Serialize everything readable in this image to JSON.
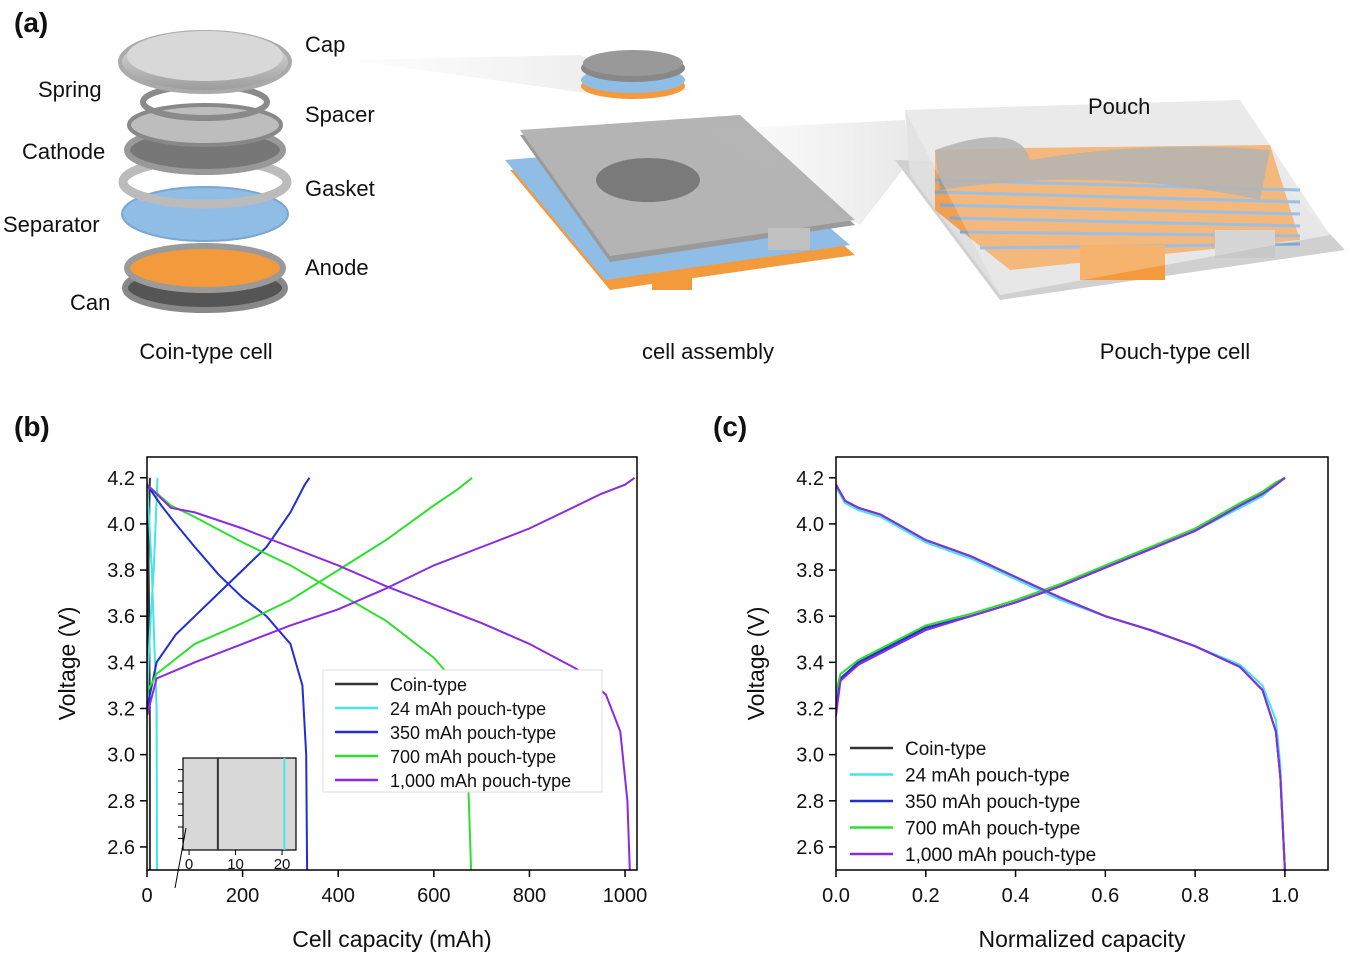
{
  "panel_labels": [
    "(a)",
    "(b)",
    "(c)"
  ],
  "diagram": {
    "coin_labels": [
      "Cap",
      "Spring",
      "Spacer",
      "Cathode",
      "Gasket",
      "Separator",
      "Anode",
      "Can"
    ],
    "pouch_label": "Pouch",
    "captions": [
      "Coin-type cell",
      "cell assembly",
      "Pouch-type cell"
    ]
  },
  "chart_data": [
    {
      "type": "line",
      "xlabel": "Cell capacity (mAh)",
      "ylabel": "Voltage (V)",
      "xlim": [
        0,
        1025
      ],
      "ylim": [
        2.5,
        4.29
      ],
      "xticks": [
        0,
        200,
        400,
        600,
        800,
        1000
      ],
      "yticks": [
        2.6,
        2.8,
        {
          "value": 3.0,
          "label": "3.0"
        },
        3.2,
        3.4,
        3.6,
        3.8,
        {
          "value": 4.0,
          "label": "4.0"
        },
        4.2
      ],
      "legend": "center right",
      "legend_frame": true,
      "series": [
        {
          "name": "Coin-type",
          "color": "#333333",
          "x": [
            0,
            1,
            3,
            5,
            6,
            null,
            0,
            2,
            4,
            5,
            6,
            6
          ],
          "values": [
            3.2,
            3.5,
            3.8,
            4.1,
            4.2,
            null,
            4.18,
            4.0,
            3.7,
            3.4,
            3.1,
            2.5
          ]
        },
        {
          "name": "24 mAh pouch-type",
          "color": "#44e4e8",
          "x": [
            0,
            3,
            8,
            14,
            19,
            22,
            null,
            0,
            5,
            10,
            15,
            20,
            21
          ],
          "values": [
            3.2,
            3.4,
            3.6,
            3.8,
            4.05,
            4.2,
            null,
            4.18,
            4.0,
            3.8,
            3.5,
            3.2,
            2.5
          ]
        },
        {
          "name": "350 mAh pouch-type",
          "color": "#1f2fd0",
          "x": [
            0,
            20,
            60,
            100,
            150,
            200,
            250,
            300,
            330,
            340,
            null,
            0,
            30,
            60,
            100,
            150,
            200,
            250,
            300,
            325,
            333,
            335
          ],
          "values": [
            3.2,
            3.4,
            3.52,
            3.6,
            3.7,
            3.8,
            3.9,
            4.05,
            4.17,
            4.2,
            null,
            4.17,
            4.08,
            4.0,
            3.9,
            3.78,
            3.68,
            3.6,
            3.48,
            3.3,
            3.0,
            2.5
          ]
        },
        {
          "name": "700 mAh pouch-type",
          "color": "#2ee02e",
          "x": [
            0,
            20,
            100,
            200,
            300,
            400,
            500,
            600,
            650,
            680,
            null,
            0,
            50,
            100,
            200,
            300,
            400,
            500,
            600,
            650,
            670,
            678
          ],
          "values": [
            3.27,
            3.35,
            3.48,
            3.57,
            3.67,
            3.8,
            3.93,
            4.08,
            4.15,
            4.2,
            null,
            4.17,
            4.08,
            4.03,
            3.92,
            3.82,
            3.7,
            3.58,
            3.42,
            3.3,
            3.0,
            2.5
          ]
        },
        {
          "name": "1,000 mAh pouch-type",
          "color": "#8a2be2",
          "x": [
            0,
            20,
            100,
            200,
            300,
            400,
            500,
            600,
            700,
            800,
            900,
            950,
            1000,
            1020,
            null,
            0,
            50,
            100,
            200,
            300,
            400,
            500,
            600,
            700,
            800,
            900,
            960,
            990,
            1005,
            1010
          ],
          "values": [
            3.17,
            3.33,
            3.4,
            3.48,
            3.56,
            3.63,
            3.72,
            3.82,
            3.9,
            3.98,
            4.08,
            4.13,
            4.17,
            4.2,
            null,
            4.17,
            4.07,
            4.05,
            3.98,
            3.9,
            3.82,
            3.73,
            3.65,
            3.57,
            3.48,
            3.37,
            3.26,
            3.1,
            2.8,
            2.5
          ]
        }
      ],
      "inset": {
        "xlim": [
          -1.3,
          23
        ],
        "xticks": [
          0,
          10,
          20
        ],
        "values": [
          6.2,
          20.5
        ],
        "colors": [
          "#333333",
          "#44e4e8"
        ]
      }
    },
    {
      "type": "line",
      "xlabel": "Normalized capacity",
      "ylabel": "Voltage (V)",
      "xlim": [
        0,
        1.096
      ],
      "ylim": [
        2.5,
        4.29
      ],
      "xticks": [
        {
          "value": 0.0,
          "label": "0.0"
        },
        0.2,
        0.4,
        0.6,
        0.8,
        {
          "value": 1.0,
          "label": "1.0"
        }
      ],
      "yticks": [
        2.6,
        2.8,
        {
          "value": 3.0,
          "label": "3.0"
        },
        3.2,
        3.4,
        3.6,
        3.8,
        {
          "value": 4.0,
          "label": "4.0"
        },
        4.2
      ],
      "legend": "lower left",
      "legend_frame": false,
      "series": [
        {
          "name": "Coin-type",
          "color": "#333333",
          "x": [
            0,
            0.01,
            0.05,
            0.1,
            0.2,
            0.3,
            0.4,
            0.5,
            0.6,
            0.7,
            0.8,
            0.9,
            0.95,
            0.98,
            1.0,
            null,
            0,
            0.02,
            0.05,
            0.1,
            0.2,
            0.3,
            0.4,
            0.5,
            0.6,
            0.7,
            0.8,
            0.9,
            0.95,
            0.98,
            0.99,
            1.0
          ],
          "values": [
            3.2,
            3.33,
            3.4,
            3.45,
            3.55,
            3.6,
            3.66,
            3.73,
            3.81,
            3.89,
            3.97,
            4.08,
            4.13,
            4.17,
            4.2,
            null,
            4.17,
            4.1,
            4.07,
            4.04,
            3.93,
            3.86,
            3.77,
            3.68,
            3.6,
            3.54,
            3.47,
            3.38,
            3.28,
            3.1,
            2.9,
            2.5
          ]
        },
        {
          "name": "24 mAh pouch-type",
          "color": "#44e4e8",
          "x": [
            0,
            0.01,
            0.05,
            0.1,
            0.2,
            0.3,
            0.4,
            0.5,
            0.6,
            0.7,
            0.8,
            0.9,
            0.95,
            0.98,
            1.0,
            null,
            0,
            0.02,
            0.05,
            0.1,
            0.2,
            0.3,
            0.4,
            0.5,
            0.6,
            0.7,
            0.8,
            0.9,
            0.95,
            0.98,
            0.99,
            1.0
          ],
          "values": [
            3.22,
            3.33,
            3.39,
            3.44,
            3.54,
            3.6,
            3.66,
            3.73,
            3.81,
            3.89,
            3.97,
            4.07,
            4.12,
            4.17,
            4.2,
            null,
            4.16,
            4.09,
            4.06,
            4.03,
            3.92,
            3.85,
            3.76,
            3.67,
            3.6,
            3.54,
            3.47,
            3.39,
            3.3,
            3.15,
            2.95,
            2.5
          ]
        },
        {
          "name": "350 mAh pouch-type",
          "color": "#1f2fd0",
          "x": [
            0,
            0.01,
            0.05,
            0.1,
            0.2,
            0.3,
            0.4,
            0.5,
            0.6,
            0.7,
            0.8,
            0.9,
            0.95,
            0.98,
            1.0,
            null,
            0,
            0.02,
            0.05,
            0.1,
            0.2,
            0.3,
            0.4,
            0.5,
            0.6,
            0.7,
            0.8,
            0.9,
            0.95,
            0.98,
            0.99,
            1.0
          ],
          "values": [
            3.2,
            3.33,
            3.4,
            3.45,
            3.55,
            3.6,
            3.66,
            3.73,
            3.81,
            3.89,
            3.97,
            4.08,
            4.13,
            4.17,
            4.2,
            null,
            4.17,
            4.1,
            4.07,
            4.04,
            3.93,
            3.86,
            3.77,
            3.68,
            3.6,
            3.54,
            3.47,
            3.38,
            3.28,
            3.1,
            2.9,
            2.5
          ]
        },
        {
          "name": "700 mAh pouch-type",
          "color": "#2ee02e",
          "x": [
            0,
            0.01,
            0.05,
            0.1,
            0.2,
            0.3,
            0.4,
            0.5,
            0.6,
            0.7,
            0.8,
            0.9,
            0.95,
            0.98,
            1.0,
            null,
            0,
            0.02,
            0.05,
            0.1,
            0.2,
            0.3,
            0.4,
            0.5,
            0.6,
            0.7,
            0.8,
            0.9,
            0.95,
            0.98,
            0.99,
            1.0
          ],
          "values": [
            3.27,
            3.35,
            3.41,
            3.46,
            3.56,
            3.61,
            3.67,
            3.74,
            3.82,
            3.9,
            3.98,
            4.09,
            4.14,
            4.18,
            4.2,
            null,
            4.17,
            4.1,
            4.07,
            4.04,
            3.93,
            3.86,
            3.77,
            3.68,
            3.6,
            3.54,
            3.47,
            3.38,
            3.28,
            3.1,
            2.9,
            2.5
          ]
        },
        {
          "name": "1,000 mAh pouch-type",
          "color": "#8a2be2",
          "x": [
            0,
            0.01,
            0.05,
            0.1,
            0.2,
            0.3,
            0.4,
            0.5,
            0.6,
            0.7,
            0.8,
            0.9,
            0.95,
            0.98,
            1.0,
            null,
            0,
            0.02,
            0.05,
            0.1,
            0.2,
            0.3,
            0.4,
            0.5,
            0.6,
            0.7,
            0.8,
            0.9,
            0.95,
            0.98,
            0.99,
            1.0
          ],
          "values": [
            3.17,
            3.32,
            3.39,
            3.44,
            3.54,
            3.6,
            3.66,
            3.73,
            3.81,
            3.89,
            3.97,
            4.08,
            4.13,
            4.17,
            4.2,
            null,
            4.17,
            4.1,
            4.07,
            4.04,
            3.93,
            3.86,
            3.77,
            3.68,
            3.6,
            3.54,
            3.47,
            3.38,
            3.28,
            3.1,
            2.9,
            2.5
          ]
        }
      ]
    }
  ]
}
